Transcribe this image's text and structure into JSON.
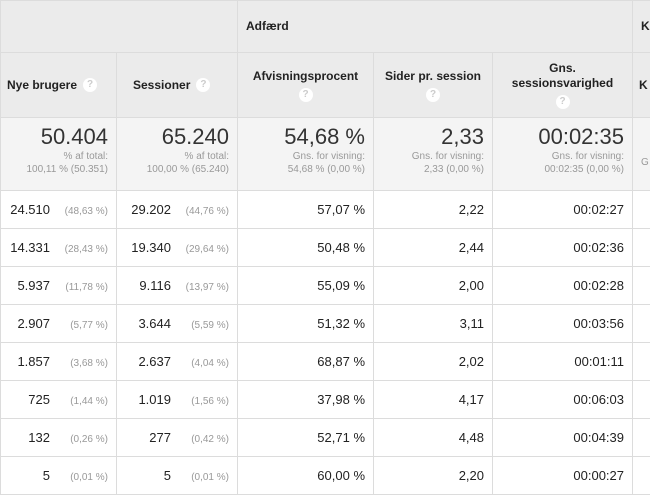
{
  "groups": {
    "behavior": "Adfærd",
    "next": "Ko"
  },
  "headers": {
    "new_users": "Nye brugere",
    "sessions": "Sessioner",
    "bounce": "Afvisningsprocent",
    "pages": "Sider pr. session",
    "duration": "Gns. sessionsvarighed",
    "next": "K",
    "help": "?"
  },
  "summary": {
    "new_users": {
      "value": "50.404",
      "l1": "% af total:",
      "l2": "100,11 % (50.351)"
    },
    "sessions": {
      "value": "65.240",
      "l1": "% af total:",
      "l2": "100,00 % (65.240)"
    },
    "bounce": {
      "value": "54,68 %",
      "l1": "Gns. for visning:",
      "l2": "54,68 % (0,00 %)"
    },
    "pages": {
      "value": "2,33",
      "l1": "Gns. for visning:",
      "l2": "2,33 (0,00 %)"
    },
    "duration": {
      "value": "00:02:35",
      "l1": "Gns. for visning:",
      "l2": "00:02:35 (0,00 %)"
    },
    "next": "G"
  },
  "rows": [
    {
      "nu": "24.510",
      "nup": "(48,63 %)",
      "s": "29.202",
      "sp": "(44,76 %)",
      "b": "57,07 %",
      "p": "2,22",
      "d": "00:02:27"
    },
    {
      "nu": "14.331",
      "nup": "(28,43 %)",
      "s": "19.340",
      "sp": "(29,64 %)",
      "b": "50,48 %",
      "p": "2,44",
      "d": "00:02:36"
    },
    {
      "nu": "5.937",
      "nup": "(11,78 %)",
      "s": "9.116",
      "sp": "(13,97 %)",
      "b": "55,09 %",
      "p": "2,00",
      "d": "00:02:28"
    },
    {
      "nu": "2.907",
      "nup": "(5,77 %)",
      "s": "3.644",
      "sp": "(5,59 %)",
      "b": "51,32 %",
      "p": "3,11",
      "d": "00:03:56"
    },
    {
      "nu": "1.857",
      "nup": "(3,68 %)",
      "s": "2.637",
      "sp": "(4,04 %)",
      "b": "68,87 %",
      "p": "2,02",
      "d": "00:01:11"
    },
    {
      "nu": "725",
      "nup": "(1,44 %)",
      "s": "1.019",
      "sp": "(1,56 %)",
      "b": "37,98 %",
      "p": "4,17",
      "d": "00:06:03"
    },
    {
      "nu": "132",
      "nup": "(0,26 %)",
      "s": "277",
      "sp": "(0,42 %)",
      "b": "52,71 %",
      "p": "4,48",
      "d": "00:04:39"
    },
    {
      "nu": "5",
      "nup": "(0,01 %)",
      "s": "5",
      "sp": "(0,01 %)",
      "b": "60,00 %",
      "p": "2,20",
      "d": "00:00:27"
    }
  ]
}
